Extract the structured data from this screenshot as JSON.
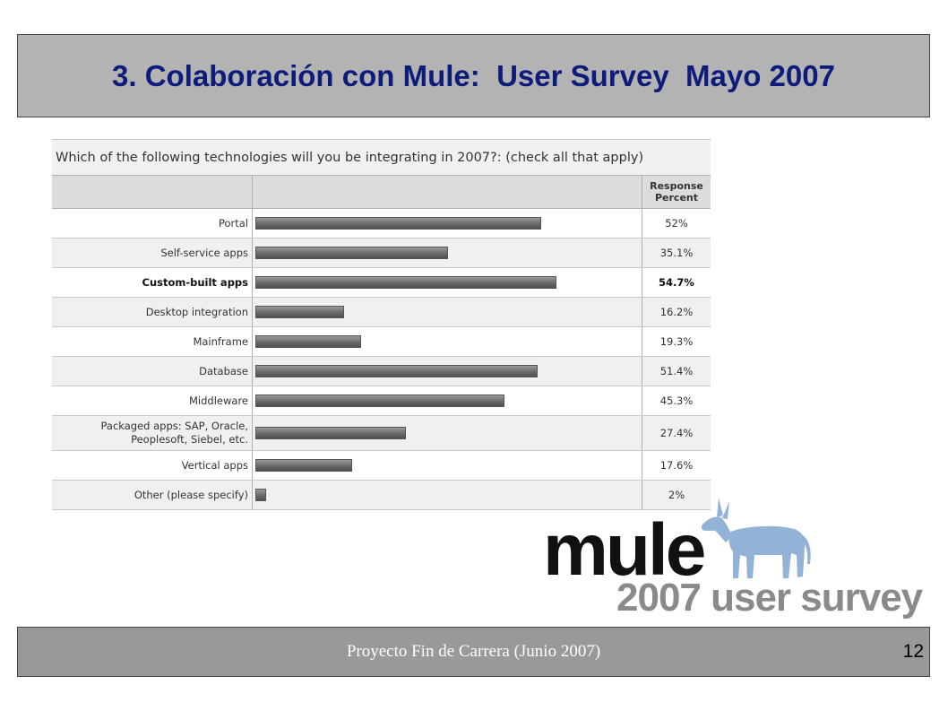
{
  "slide": {
    "title": "3. Colaboración con Mule:  User Survey  Mayo 2007",
    "footer": "Proyecto Fin de Carrera  (Junio 2007)",
    "page_number": "12"
  },
  "survey": {
    "question": "Which of the following technologies will you be integrating in 2007?: (check all that apply)",
    "column_header": "Response Percent"
  },
  "chart_data": {
    "type": "bar",
    "orientation": "horizontal",
    "title": "",
    "categories": [
      "Portal",
      "Self-service apps",
      "Custom-built apps",
      "Desktop integration",
      "Mainframe",
      "Database",
      "Middleware",
      "Packaged apps: SAP, Oracle, Peoplesoft, Siebel, etc.",
      "Vertical apps",
      "Other (please specify)"
    ],
    "values": [
      52,
      35.1,
      54.7,
      16.2,
      19.3,
      51.4,
      45.3,
      27.4,
      17.6,
      2
    ],
    "value_labels": [
      "52%",
      "35.1%",
      "54.7%",
      "16.2%",
      "19.3%",
      "51.4%",
      "45.3%",
      "27.4%",
      "17.6%",
      "2%"
    ],
    "highlighted_index": 2,
    "xlim": [
      0,
      60
    ],
    "bar_color": "#6a6a6a"
  },
  "logo": {
    "brand": "mule",
    "tagline": "2007 user survey",
    "brand_color": "#111111",
    "tagline_color": "#8a8a8a",
    "mascot_color": "#93b3d6"
  }
}
